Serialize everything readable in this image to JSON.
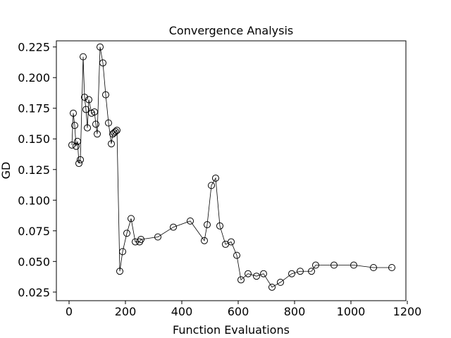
{
  "chart_data": {
    "type": "line",
    "title": "Convergence Analysis",
    "xlabel": "Function Evaluations",
    "ylabel": "GD",
    "xlim": [
      -45,
      1195
    ],
    "ylim": [
      0.018,
      0.23
    ],
    "x_ticks": [
      0,
      200,
      400,
      600,
      800,
      1000,
      1200
    ],
    "x_tick_labels": [
      "0",
      "200",
      "400",
      "600",
      "800",
      "1000",
      "1200"
    ],
    "y_ticks": [
      0.025,
      0.05,
      0.075,
      0.1,
      0.125,
      0.15,
      0.175,
      0.2,
      0.225
    ],
    "y_tick_labels": [
      "0.025",
      "0.050",
      "0.075",
      "0.100",
      "0.125",
      "0.150",
      "0.175",
      "0.200",
      "0.225"
    ],
    "grid": false,
    "legend": "none",
    "line_color": "#000000",
    "marker": "open-circle",
    "series": [
      {
        "x": [
          10,
          15,
          20,
          25,
          30,
          35,
          40,
          50,
          55,
          60,
          65,
          70,
          80,
          90,
          95,
          100,
          110,
          120,
          130,
          140,
          150,
          155,
          160,
          165,
          170,
          180,
          190,
          205,
          220,
          235,
          250,
          255,
          315,
          370,
          430,
          480,
          490,
          505,
          520,
          535,
          555,
          575,
          595,
          610,
          635,
          665,
          690,
          720,
          750,
          790,
          820,
          860,
          875,
          940,
          1010,
          1080,
          1145
        ],
        "y": [
          0.145,
          0.171,
          0.161,
          0.144,
          0.148,
          0.13,
          0.133,
          0.217,
          0.184,
          0.174,
          0.159,
          0.182,
          0.171,
          0.172,
          0.162,
          0.154,
          0.225,
          0.212,
          0.186,
          0.163,
          0.146,
          0.154,
          0.155,
          0.156,
          0.157,
          0.042,
          0.058,
          0.073,
          0.085,
          0.066,
          0.066,
          0.068,
          0.07,
          0.078,
          0.083,
          0.067,
          0.08,
          0.112,
          0.118,
          0.079,
          0.064,
          0.066,
          0.055,
          0.035,
          0.04,
          0.038,
          0.04,
          0.029,
          0.033,
          0.04,
          0.042,
          0.042,
          0.047,
          0.047,
          0.047,
          0.045,
          0.045
        ]
      }
    ]
  }
}
